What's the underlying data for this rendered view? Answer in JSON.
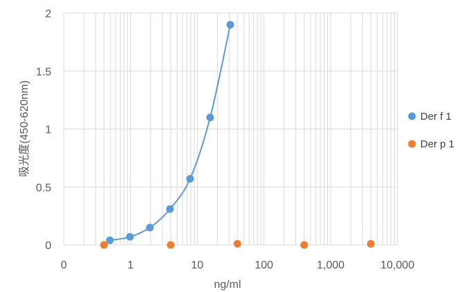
{
  "chart_data": {
    "type": "scatter",
    "title": "",
    "xlabel": "ng/ml",
    "ylabel": "吸光度(450-620nm)",
    "x_scale": "log",
    "xlim": [
      0.1,
      10000
    ],
    "ylim": [
      0,
      2
    ],
    "x_ticks": [
      {
        "value": 0.1,
        "label": "0"
      },
      {
        "value": 1,
        "label": "1"
      },
      {
        "value": 10,
        "label": "10"
      },
      {
        "value": 100,
        "label": "100"
      },
      {
        "value": 1000,
        "label": "1,000"
      },
      {
        "value": 10000,
        "label": "10,000"
      }
    ],
    "y_ticks": [
      {
        "value": 0,
        "label": "0"
      },
      {
        "value": 0.5,
        "label": "0.5"
      },
      {
        "value": 1,
        "label": "1"
      },
      {
        "value": 1.5,
        "label": "1.5"
      },
      {
        "value": 2,
        "label": "2"
      }
    ],
    "grid": true,
    "legend_position": "right",
    "series": [
      {
        "name": "Der f 1",
        "color": "#5B9BD5",
        "smooth_line": true,
        "points": [
          {
            "x": 0.49,
            "y": 0.04
          },
          {
            "x": 0.98,
            "y": 0.07
          },
          {
            "x": 1.95,
            "y": 0.15
          },
          {
            "x": 3.9,
            "y": 0.31
          },
          {
            "x": 7.8,
            "y": 0.57
          },
          {
            "x": 15.6,
            "y": 1.1
          },
          {
            "x": 31.25,
            "y": 1.9
          }
        ]
      },
      {
        "name": "Der p 1",
        "color": "#ED7D31",
        "smooth_line": false,
        "points": [
          {
            "x": 0.4,
            "y": 0.0
          },
          {
            "x": 4,
            "y": 0.0
          },
          {
            "x": 40,
            "y": 0.01
          },
          {
            "x": 400,
            "y": 0.0
          },
          {
            "x": 4000,
            "y": 0.01
          }
        ]
      }
    ]
  }
}
